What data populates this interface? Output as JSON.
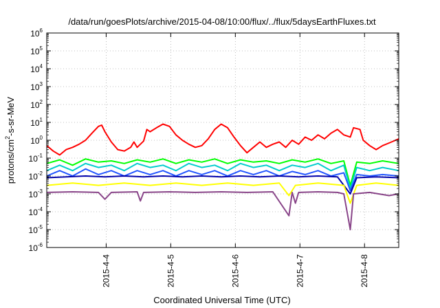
{
  "chart_data": {
    "type": "line",
    "title": "/data/run/goesPlots/archive/2015-04-08/10:00/flux/../flux/5daysEarthFluxes.txt",
    "xlabel": "Coordinated Universal Time (UTC)",
    "ylabel_parts": [
      "protons/cm",
      "2",
      "-s-sr-MeV"
    ],
    "x_range_days": [
      3.0,
      8.45
    ],
    "x_ticks": [
      {
        "label": "2015-4-4",
        "day": 3.92
      },
      {
        "label": "2015-4-5",
        "day": 4.92
      },
      {
        "label": "2015-4-6",
        "day": 5.92
      },
      {
        "label": "2015-4-7",
        "day": 6.92
      },
      {
        "label": "2015-4-8",
        "day": 7.92
      }
    ],
    "y_scale": "log",
    "y_range_exp": [
      -6,
      6
    ],
    "y_ticks": [
      {
        "base": "10",
        "exp": "6"
      },
      {
        "base": "10",
        "exp": "5"
      },
      {
        "base": "10",
        "exp": "4"
      },
      {
        "base": "10",
        "exp": "3"
      },
      {
        "base": "10",
        "exp": "2"
      },
      {
        "base": "10",
        "exp": "1"
      },
      {
        "base": "10",
        "exp": "0"
      },
      {
        "base": "10",
        "exp": "-1"
      },
      {
        "base": "10",
        "exp": "-2"
      },
      {
        "base": "10",
        "exp": "-3"
      },
      {
        "base": "10",
        "exp": "-4"
      },
      {
        "base": "10",
        "exp": "-5"
      },
      {
        "base": "10",
        "exp": "-6"
      }
    ],
    "grid": true,
    "series": [
      {
        "color": "#ff0000",
        "points": [
          [
            3.0,
            0.5
          ],
          [
            3.1,
            0.25
          ],
          [
            3.2,
            0.15
          ],
          [
            3.3,
            0.3
          ],
          [
            3.4,
            0.4
          ],
          [
            3.5,
            0.6
          ],
          [
            3.6,
            1.0
          ],
          [
            3.7,
            2.5
          ],
          [
            3.8,
            6.0
          ],
          [
            3.85,
            7.0
          ],
          [
            3.9,
            3.0
          ],
          [
            4.0,
            0.8
          ],
          [
            4.1,
            0.3
          ],
          [
            4.2,
            0.25
          ],
          [
            4.3,
            0.4
          ],
          [
            4.35,
            0.8
          ],
          [
            4.4,
            0.4
          ],
          [
            4.5,
            0.9
          ],
          [
            4.55,
            4.0
          ],
          [
            4.6,
            3.0
          ],
          [
            4.7,
            5.0
          ],
          [
            4.8,
            8.0
          ],
          [
            4.9,
            6.0
          ],
          [
            5.0,
            2.0
          ],
          [
            5.1,
            1.0
          ],
          [
            5.2,
            0.6
          ],
          [
            5.3,
            0.4
          ],
          [
            5.4,
            0.5
          ],
          [
            5.5,
            1.2
          ],
          [
            5.6,
            4.0
          ],
          [
            5.7,
            8.0
          ],
          [
            5.8,
            5.0
          ],
          [
            5.9,
            1.5
          ],
          [
            6.0,
            0.5
          ],
          [
            6.1,
            0.2
          ],
          [
            6.2,
            0.4
          ],
          [
            6.3,
            0.8
          ],
          [
            6.4,
            0.4
          ],
          [
            6.5,
            0.6
          ],
          [
            6.6,
            0.8
          ],
          [
            6.7,
            0.4
          ],
          [
            6.8,
            1.0
          ],
          [
            6.9,
            0.6
          ],
          [
            7.0,
            1.5
          ],
          [
            7.1,
            1.0
          ],
          [
            7.2,
            2.0
          ],
          [
            7.3,
            1.2
          ],
          [
            7.4,
            2.5
          ],
          [
            7.5,
            4.0
          ],
          [
            7.6,
            2.0
          ],
          [
            7.7,
            1.5
          ],
          [
            7.75,
            5.0
          ],
          [
            7.85,
            4.0
          ],
          [
            7.9,
            1.0
          ],
          [
            8.0,
            0.5
          ],
          [
            8.1,
            0.3
          ],
          [
            8.2,
            0.5
          ],
          [
            8.3,
            0.7
          ],
          [
            8.4,
            1.0
          ],
          [
            8.45,
            1.2
          ]
        ]
      },
      {
        "color": "#00ff00",
        "points": [
          [
            3.0,
            0.05
          ],
          [
            3.2,
            0.08
          ],
          [
            3.4,
            0.04
          ],
          [
            3.6,
            0.09
          ],
          [
            3.8,
            0.06
          ],
          [
            4.0,
            0.07
          ],
          [
            4.2,
            0.05
          ],
          [
            4.4,
            0.08
          ],
          [
            4.6,
            0.06
          ],
          [
            4.8,
            0.09
          ],
          [
            5.0,
            0.05
          ],
          [
            5.2,
            0.08
          ],
          [
            5.4,
            0.06
          ],
          [
            5.6,
            0.09
          ],
          [
            5.8,
            0.05
          ],
          [
            6.0,
            0.08
          ],
          [
            6.2,
            0.06
          ],
          [
            6.4,
            0.07
          ],
          [
            6.6,
            0.05
          ],
          [
            6.8,
            0.08
          ],
          [
            7.0,
            0.06
          ],
          [
            7.2,
            0.09
          ],
          [
            7.4,
            0.05
          ],
          [
            7.6,
            0.07
          ],
          [
            7.7,
            0.003
          ],
          [
            7.8,
            0.06
          ],
          [
            8.0,
            0.05
          ],
          [
            8.2,
            0.07
          ],
          [
            8.45,
            0.05
          ]
        ]
      },
      {
        "color": "#00cccc",
        "points": [
          [
            3.0,
            0.02
          ],
          [
            3.2,
            0.04
          ],
          [
            3.4,
            0.02
          ],
          [
            3.6,
            0.05
          ],
          [
            3.8,
            0.03
          ],
          [
            4.0,
            0.04
          ],
          [
            4.2,
            0.02
          ],
          [
            4.4,
            0.05
          ],
          [
            4.6,
            0.03
          ],
          [
            4.8,
            0.04
          ],
          [
            5.0,
            0.02
          ],
          [
            5.2,
            0.05
          ],
          [
            5.4,
            0.03
          ],
          [
            5.6,
            0.04
          ],
          [
            5.8,
            0.02
          ],
          [
            6.0,
            0.05
          ],
          [
            6.2,
            0.03
          ],
          [
            6.4,
            0.04
          ],
          [
            6.6,
            0.02
          ],
          [
            6.8,
            0.04
          ],
          [
            7.0,
            0.03
          ],
          [
            7.2,
            0.05
          ],
          [
            7.4,
            0.02
          ],
          [
            7.6,
            0.04
          ],
          [
            7.7,
            0.002
          ],
          [
            7.8,
            0.03
          ],
          [
            8.0,
            0.02
          ],
          [
            8.2,
            0.03
          ],
          [
            8.45,
            0.02
          ]
        ]
      },
      {
        "color": "#2255ff",
        "points": [
          [
            3.0,
            0.01
          ],
          [
            3.2,
            0.02
          ],
          [
            3.4,
            0.01
          ],
          [
            3.6,
            0.025
          ],
          [
            3.8,
            0.012
          ],
          [
            4.0,
            0.02
          ],
          [
            4.2,
            0.01
          ],
          [
            4.4,
            0.02
          ],
          [
            4.6,
            0.012
          ],
          [
            4.8,
            0.02
          ],
          [
            5.0,
            0.01
          ],
          [
            5.2,
            0.02
          ],
          [
            5.4,
            0.012
          ],
          [
            5.6,
            0.02
          ],
          [
            5.8,
            0.01
          ],
          [
            6.0,
            0.02
          ],
          [
            6.2,
            0.012
          ],
          [
            6.4,
            0.02
          ],
          [
            6.6,
            0.01
          ],
          [
            6.8,
            0.018
          ],
          [
            7.0,
            0.012
          ],
          [
            7.2,
            0.02
          ],
          [
            7.4,
            0.01
          ],
          [
            7.6,
            0.015
          ],
          [
            7.7,
            0.0015
          ],
          [
            7.8,
            0.012
          ],
          [
            8.0,
            0.01
          ],
          [
            8.2,
            0.012
          ],
          [
            8.45,
            0.01
          ]
        ]
      },
      {
        "color": "#0000aa",
        "points": [
          [
            3.0,
            0.008
          ],
          [
            3.3,
            0.009
          ],
          [
            3.6,
            0.01
          ],
          [
            3.9,
            0.009
          ],
          [
            4.2,
            0.01
          ],
          [
            4.5,
            0.009
          ],
          [
            4.8,
            0.01
          ],
          [
            5.1,
            0.009
          ],
          [
            5.4,
            0.01
          ],
          [
            5.7,
            0.009
          ],
          [
            6.0,
            0.01
          ],
          [
            6.3,
            0.009
          ],
          [
            6.6,
            0.01
          ],
          [
            6.9,
            0.009
          ],
          [
            7.2,
            0.01
          ],
          [
            7.5,
            0.009
          ],
          [
            7.7,
            0.001
          ],
          [
            7.8,
            0.008
          ],
          [
            8.1,
            0.009
          ],
          [
            8.45,
            0.008
          ]
        ]
      },
      {
        "color": "#ffff00",
        "points": [
          [
            3.0,
            0.003
          ],
          [
            3.4,
            0.004
          ],
          [
            3.8,
            0.003
          ],
          [
            4.2,
            0.004
          ],
          [
            4.6,
            0.003
          ],
          [
            5.0,
            0.004
          ],
          [
            5.4,
            0.003
          ],
          [
            5.8,
            0.004
          ],
          [
            6.2,
            0.003
          ],
          [
            6.6,
            0.004
          ],
          [
            6.75,
            0.0008
          ],
          [
            6.85,
            0.003
          ],
          [
            7.2,
            0.004
          ],
          [
            7.6,
            0.003
          ],
          [
            7.7,
            0.0003
          ],
          [
            7.8,
            0.003
          ],
          [
            8.1,
            0.004
          ],
          [
            8.45,
            0.003
          ]
        ]
      },
      {
        "color": "#884488",
        "points": [
          [
            3.0,
            0.0012
          ],
          [
            3.4,
            0.0013
          ],
          [
            3.8,
            0.0012
          ],
          [
            3.9,
            0.0005
          ],
          [
            4.0,
            0.0012
          ],
          [
            4.4,
            0.0013
          ],
          [
            4.45,
            0.0004
          ],
          [
            4.5,
            0.0012
          ],
          [
            4.9,
            0.0013
          ],
          [
            5.3,
            0.0012
          ],
          [
            5.7,
            0.0013
          ],
          [
            6.1,
            0.0012
          ],
          [
            6.5,
            0.0013
          ],
          [
            6.75,
            6e-05
          ],
          [
            6.8,
            0.0012
          ],
          [
            6.85,
            0.0003
          ],
          [
            6.9,
            0.0012
          ],
          [
            7.2,
            0.0013
          ],
          [
            7.5,
            0.0012
          ],
          [
            7.6,
            0.001
          ],
          [
            7.7,
            1e-05
          ],
          [
            7.75,
            0.001
          ],
          [
            8.0,
            0.0012
          ],
          [
            8.3,
            0.0008
          ],
          [
            8.45,
            0.001
          ]
        ]
      }
    ]
  }
}
